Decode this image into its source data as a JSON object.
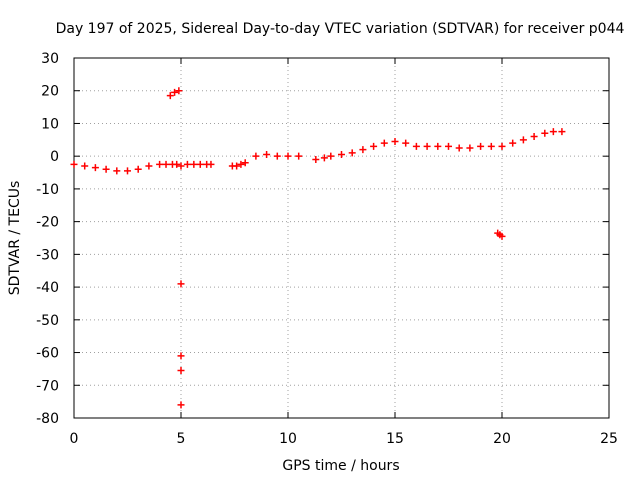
{
  "chart_data": {
    "type": "scatter",
    "title": "Day 197 of 2025, Sidereal Day-to-day VTEC variation (SDTVAR) for receiver p044",
    "xlabel": "GPS time / hours",
    "ylabel": "SDTVAR / TECUs",
    "xlim": [
      0,
      25
    ],
    "ylim": [
      -80,
      30
    ],
    "xticks": [
      0,
      5,
      10,
      15,
      20,
      25
    ],
    "yticks": [
      30,
      20,
      10,
      0,
      -10,
      -20,
      -30,
      -40,
      -50,
      -60,
      -70,
      -80
    ],
    "grid": true,
    "series": [
      {
        "name": "SDTVAR p044",
        "color": "#ff0000",
        "marker": "+",
        "x": [
          0.0,
          0.5,
          1.0,
          1.5,
          2.0,
          2.5,
          3.0,
          3.5,
          4.0,
          4.3,
          4.6,
          4.8,
          5.0,
          5.3,
          5.6,
          5.9,
          6.2,
          6.4,
          7.4,
          7.6,
          7.8,
          8.0,
          8.5,
          9.0,
          9.5,
          10.0,
          10.5,
          11.3,
          11.7,
          12.0,
          12.5,
          13.0,
          13.5,
          14.0,
          14.5,
          15.0,
          15.5,
          16.0,
          16.5,
          17.0,
          17.5,
          18.0,
          18.5,
          19.0,
          19.5,
          20.0,
          20.5,
          21.0,
          21.5,
          22.0,
          22.4,
          22.8,
          4.5,
          4.7,
          4.9,
          5.0,
          5.0,
          5.0,
          5.0,
          19.8,
          19.9,
          20.0
        ],
        "y": [
          -2.5,
          -3.0,
          -3.5,
          -4.0,
          -4.5,
          -4.5,
          -4.0,
          -3.0,
          -2.5,
          -2.5,
          -2.5,
          -2.5,
          -3.0,
          -2.5,
          -2.5,
          -2.5,
          -2.5,
          -2.5,
          -3.0,
          -3.0,
          -2.5,
          -2.0,
          0.0,
          0.5,
          0.0,
          0.0,
          0.0,
          -1.0,
          -0.5,
          0.0,
          0.5,
          1.0,
          2.0,
          3.0,
          4.0,
          4.5,
          4.0,
          3.0,
          3.0,
          3.0,
          3.0,
          2.5,
          2.5,
          3.0,
          3.0,
          3.0,
          4.0,
          5.0,
          6.0,
          7.0,
          7.5,
          7.5,
          18.5,
          19.5,
          20.0,
          -39.0,
          -61.0,
          -65.5,
          -76.0,
          -23.5,
          -24.0,
          -24.5
        ]
      }
    ]
  }
}
